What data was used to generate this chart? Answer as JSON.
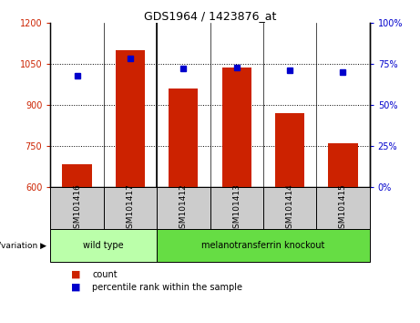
{
  "title": "GDS1964 / 1423876_at",
  "categories": [
    "GSM101416",
    "GSM101417",
    "GSM101412",
    "GSM101413",
    "GSM101414",
    "GSM101415"
  ],
  "bar_values": [
    685,
    1100,
    960,
    1035,
    870,
    760
  ],
  "percentile_values": [
    68,
    78,
    72,
    73,
    71,
    70
  ],
  "ylim_left": [
    600,
    1200
  ],
  "ylim_right": [
    0,
    100
  ],
  "yticks_left": [
    600,
    750,
    900,
    1050,
    1200
  ],
  "yticks_right": [
    0,
    25,
    50,
    75,
    100
  ],
  "bar_color": "#cc2200",
  "dot_color": "#0000cc",
  "grid_ticks": [
    750,
    900,
    1050
  ],
  "group1": {
    "label": "wild type",
    "indices": [
      0,
      1
    ]
  },
  "group2": {
    "label": "melanotransferrin knockout",
    "indices": [
      2,
      3,
      4,
      5
    ]
  },
  "group_color_light": "#bbffaa",
  "group_color_dark": "#66dd44",
  "sample_cell_color": "#cccccc",
  "tick_label_color": "#cc2200",
  "right_tick_color": "#0000cc",
  "xlabel_group": "genotype/variation",
  "legend_bar": "count",
  "legend_dot": "percentile rank within the sample",
  "bar_width": 0.55,
  "n_cats": 6
}
